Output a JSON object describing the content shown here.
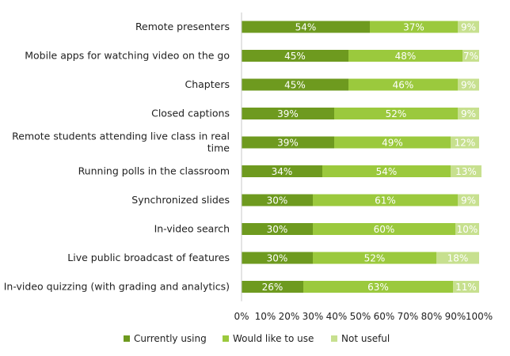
{
  "chart_data": {
    "type": "bar",
    "orientation": "horizontal",
    "stacked": true,
    "title": "",
    "xlabel": "",
    "ylabel": "",
    "xlim": [
      0,
      100
    ],
    "x_ticks": [
      "0%",
      "10%",
      "20%",
      "30%",
      "40%",
      "50%",
      "60%",
      "70%",
      "80%",
      "90%",
      "100%"
    ],
    "grid": false,
    "legend_position": "bottom",
    "categories": [
      "Remote presenters",
      "Mobile apps for watching video on the go",
      "Chapters",
      "Closed captions",
      "Remote students attending live class in real time",
      "Running polls in the classroom",
      "Synchronized slides",
      "In-video search",
      "Live public broadcast of features",
      "In-video quizzing (with grading and analytics)"
    ],
    "category_label_lines": [
      [
        "Remote presenters"
      ],
      [
        "Mobile apps for watching video on the go"
      ],
      [
        "Chapters"
      ],
      [
        "Closed captions"
      ],
      [
        "Remote students attending live class in real",
        "time"
      ],
      [
        "Running polls in the classroom"
      ],
      [
        "Synchronized slides"
      ],
      [
        "In-video search"
      ],
      [
        "Live public broadcast of features"
      ],
      [
        "In-video quizzing (with grading and analytics)"
      ]
    ],
    "series": [
      {
        "name": "Currently using",
        "color": "#6e9a1f",
        "values": [
          54,
          45,
          45,
          39,
          39,
          34,
          30,
          30,
          30,
          26
        ]
      },
      {
        "name": "Would like to use",
        "color": "#9bc93d",
        "values": [
          37,
          48,
          46,
          52,
          49,
          54,
          61,
          60,
          52,
          63
        ]
      },
      {
        "name": "Not useful",
        "color": "#c7e08f",
        "values": [
          9,
          7,
          9,
          9,
          12,
          13,
          9,
          10,
          18,
          11
        ]
      }
    ]
  }
}
